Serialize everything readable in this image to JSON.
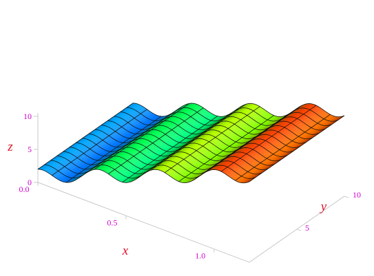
{
  "chart_data": {
    "type": "surface",
    "title": "",
    "function": "z = 10x + cos(6πx) + 1",
    "x_label": "x",
    "y_label": "y",
    "z_label": "z",
    "x_range": [
      0,
      1.2
    ],
    "y_range": [
      0,
      10
    ],
    "z_range": [
      0,
      14
    ],
    "x_ticks": [
      {
        "value": 0.0,
        "label": "0.0"
      },
      {
        "value": 0.5,
        "label": "0.5"
      },
      {
        "value": 1.0,
        "label": "1.0"
      }
    ],
    "y_ticks": [
      {
        "value": 5,
        "label": "5"
      },
      {
        "value": 10,
        "label": "10"
      }
    ],
    "z_ticks": [
      {
        "value": 0,
        "label": "0"
      },
      {
        "value": 5,
        "label": "5"
      },
      {
        "value": 10,
        "label": "10"
      }
    ],
    "mesh": {
      "x_lines": 15,
      "y_lines": 15
    },
    "coloring": "hue by height: blue (low) → cyan → green → yellow → red (high)",
    "colors": {
      "tick_label": "#d000d0",
      "axis_label": "#e0142a",
      "box": "#c9c9c9",
      "mesh": "#111111"
    },
    "style": {
      "box": true,
      "grid": false,
      "legend": "none"
    }
  }
}
